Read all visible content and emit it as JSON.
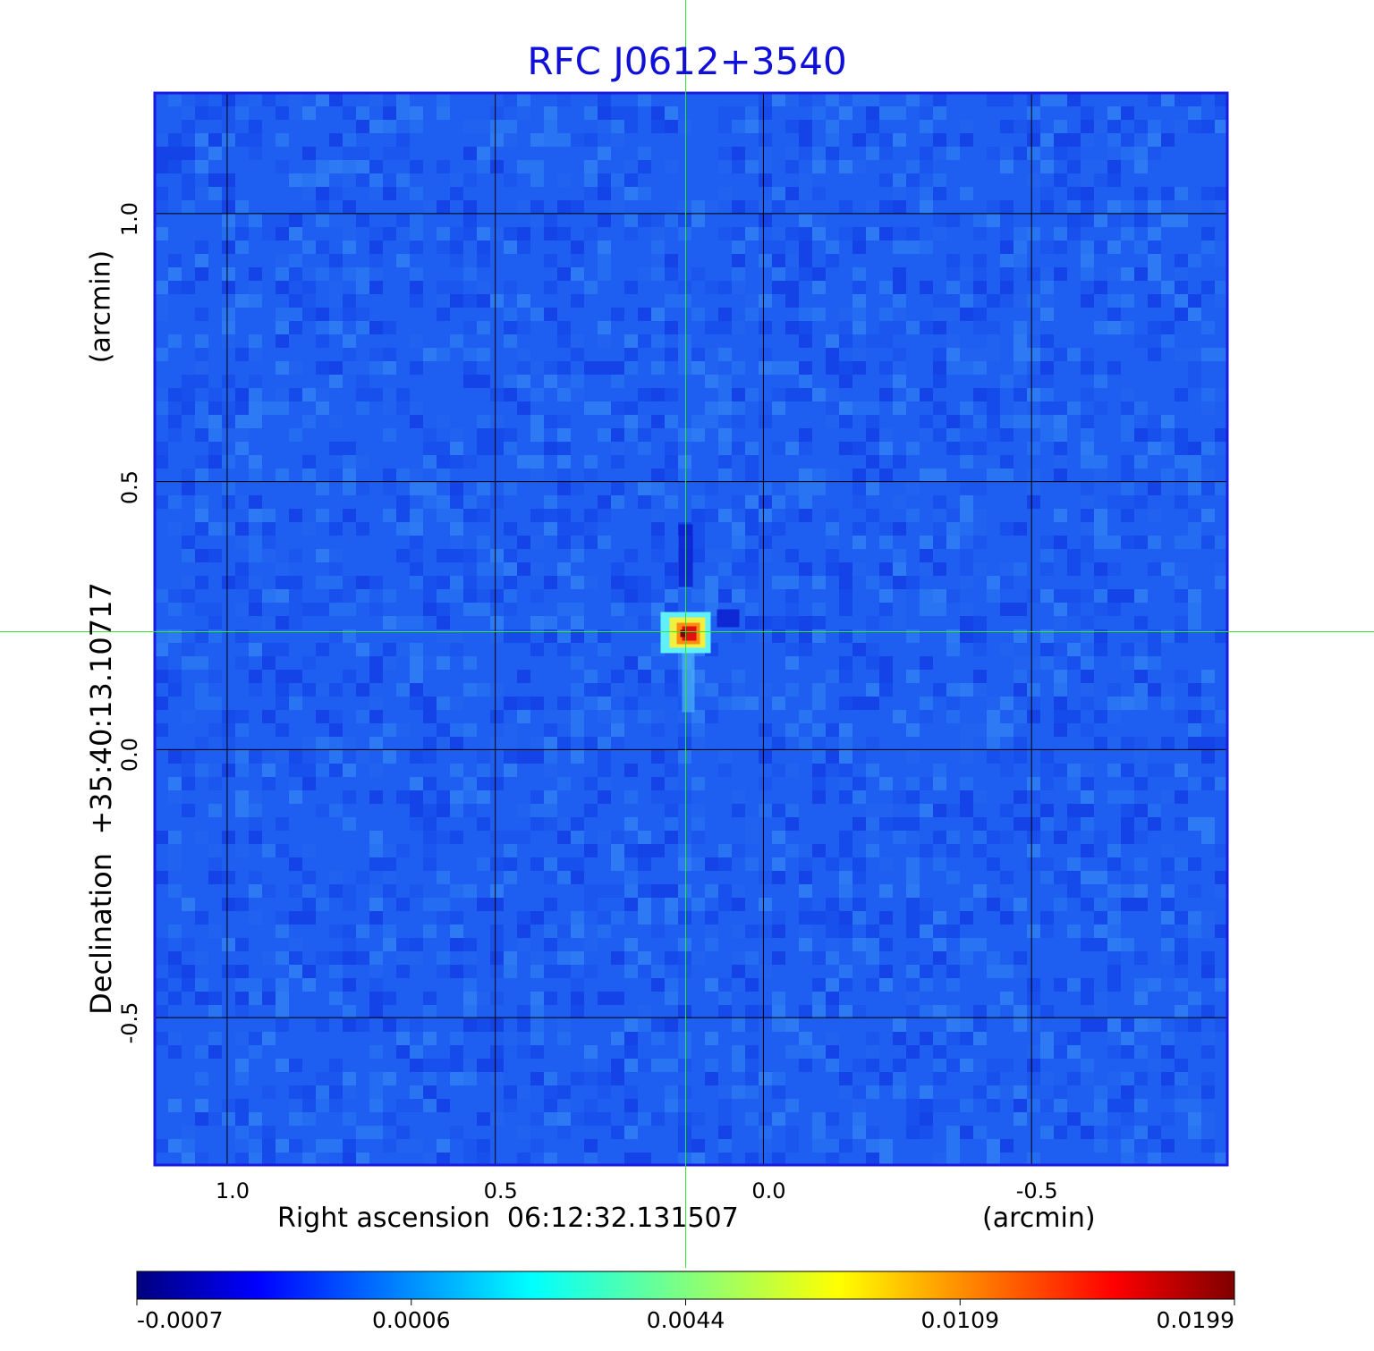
{
  "chart_data": {
    "type": "heatmap",
    "title": "RFC J0612+3540",
    "xlabel": "Right ascension  06:12:32.131507",
    "xunit": "(arcmin)",
    "ylabel": "Declination  +35:40:13.10717",
    "yunit": "(arcmin)",
    "xlim": [
      1.135,
      -0.865
    ],
    "ylim": [
      -0.775,
      1.225
    ],
    "xticks": [
      1.0,
      0.5,
      0.0,
      -0.5
    ],
    "xtick_labels": [
      "1.0",
      "0.5",
      "0.0",
      "-0.5"
    ],
    "yticks": [
      1.0,
      0.5,
      0.0,
      -0.5
    ],
    "ytick_labels": [
      "1.0",
      "0.5",
      "0.0",
      "-0.5"
    ],
    "grid": true,
    "crosshair": {
      "x": 0.145,
      "y": 0.22
    },
    "source_peak": {
      "x": 0.145,
      "y": 0.22,
      "value": 0.0199
    },
    "colorbar": {
      "ticks": [
        -0.0007,
        0.0006,
        0.0044,
        0.0109,
        0.0199
      ],
      "tick_labels": [
        "-0.0007",
        "0.0006",
        "0.0044",
        "0.0109",
        "0.0199"
      ],
      "colormap": "jet"
    }
  },
  "colors": {
    "title": "#1010d8",
    "frame": "#1a1ae0",
    "background_map": "#1e5ef0",
    "grid": "#000000",
    "crosshair": "#32e632"
  }
}
